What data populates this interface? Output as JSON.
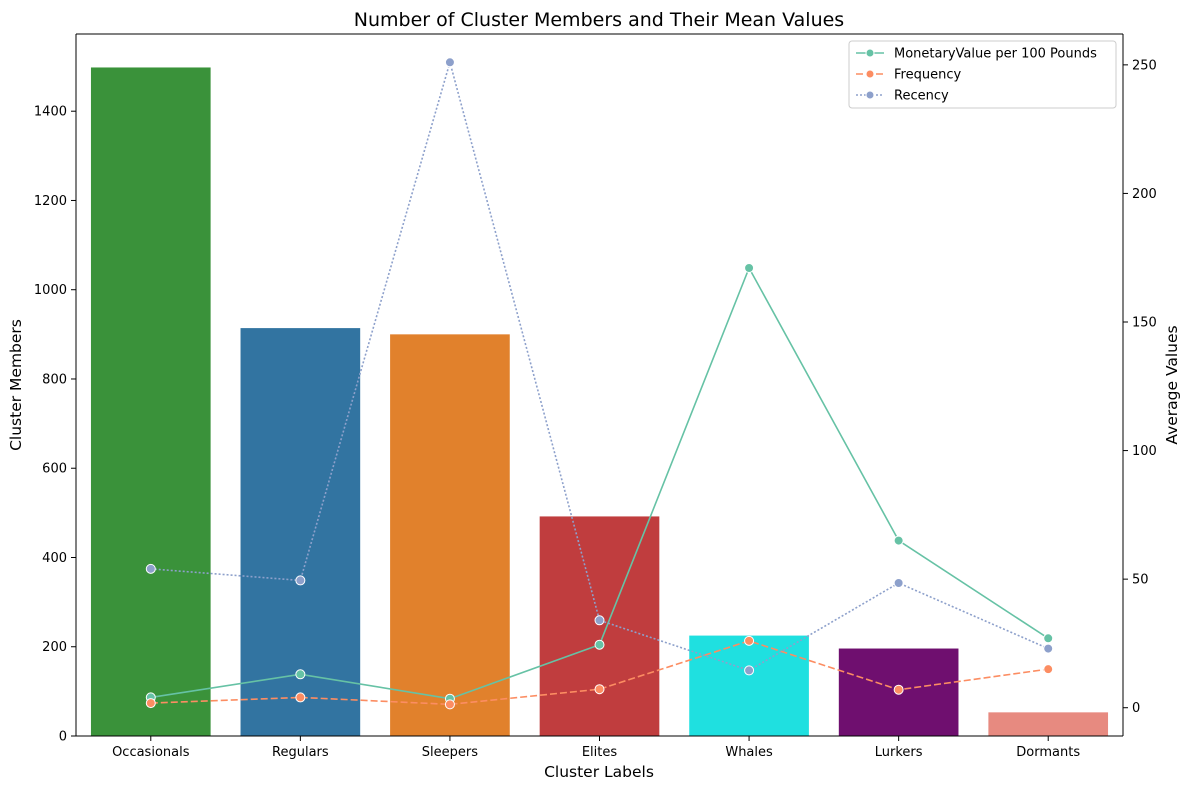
{
  "chart_data": {
    "type": "bar",
    "title": "Number of Cluster Members and Their Mean Values",
    "xlabel": "Cluster Labels",
    "ylabel": "Cluster Members",
    "y2label": "Average Values",
    "categories": [
      "Occasionals",
      "Regulars",
      "Sleepers",
      "Elites",
      "Whales",
      "Lurkers",
      "Dormants"
    ],
    "bars": {
      "values": [
        1498,
        914,
        900,
        492,
        225,
        196,
        53
      ],
      "colors": [
        "#3a923a",
        "#3274a1",
        "#e1812c",
        "#c03d3e",
        "#1fe0e0",
        "#6f0f6f",
        "#e78a80"
      ]
    },
    "ylim": [
      0,
      1573
    ],
    "yticks": [
      0,
      200,
      400,
      600,
      800,
      1000,
      1200,
      1400
    ],
    "y2lim": [
      -11,
      262
    ],
    "y2ticks": [
      0,
      50,
      100,
      150,
      200,
      250
    ],
    "lines": [
      {
        "name": "MonetaryValue per 100 Pounds",
        "color": "#66c2a5",
        "dash": "solid",
        "values": [
          4.0,
          13.0,
          3.5,
          24.5,
          171.0,
          65.0,
          27.0
        ]
      },
      {
        "name": "Frequency",
        "color": "#fc8d62",
        "dash": "dashed",
        "values": [
          1.8,
          4.0,
          1.3,
          7.2,
          26.0,
          7.0,
          15.0
        ]
      },
      {
        "name": "Recency",
        "color": "#8da0cb",
        "dash": "dotted",
        "values": [
          54.0,
          49.5,
          251.0,
          34.0,
          14.5,
          48.5,
          23.0
        ]
      }
    ],
    "legend_position": "top-right",
    "grid": false
  }
}
